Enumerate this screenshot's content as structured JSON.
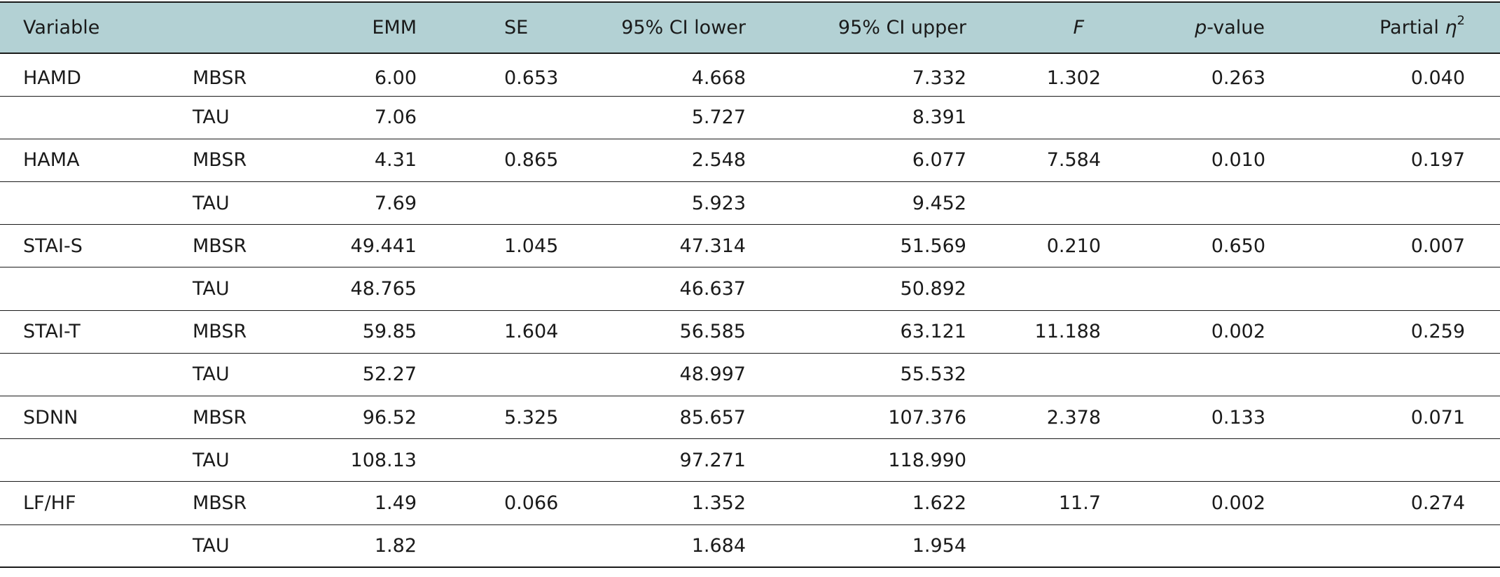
{
  "header": {
    "variable": "Variable",
    "group": "",
    "emm": "EMM",
    "se": "SE",
    "ci_lower": "95% CI lower",
    "ci_upper": "95% CI upper",
    "f_stat": "F",
    "p_italic": "p",
    "p_rest": "-value",
    "eta_prefix": "Partial ",
    "eta_symbol": "η",
    "eta_sup": "2"
  },
  "rows": [
    {
      "variable": "HAMD",
      "group": "MBSR",
      "emm": "6.00",
      "se": "0.653",
      "ci_lower": "4.668",
      "ci_upper": "7.332",
      "f": "1.302",
      "p": "0.263",
      "eta": "0.040"
    },
    {
      "variable": "",
      "group": "TAU",
      "emm": "7.06",
      "se": "",
      "ci_lower": "5.727",
      "ci_upper": "8.391",
      "f": "",
      "p": "",
      "eta": ""
    },
    {
      "variable": "HAMA",
      "group": "MBSR",
      "emm": "4.31",
      "se": "0.865",
      "ci_lower": "2.548",
      "ci_upper": "6.077",
      "f": "7.584",
      "p": "0.010",
      "eta": "0.197"
    },
    {
      "variable": "",
      "group": "TAU",
      "emm": "7.69",
      "se": "",
      "ci_lower": "5.923",
      "ci_upper": "9.452",
      "f": "",
      "p": "",
      "eta": ""
    },
    {
      "variable": "STAI-S",
      "group": "MBSR",
      "emm": "49.441",
      "se": "1.045",
      "ci_lower": "47.314",
      "ci_upper": "51.569",
      "f": "0.210",
      "p": "0.650",
      "eta": "0.007"
    },
    {
      "variable": "",
      "group": "TAU",
      "emm": "48.765",
      "se": "",
      "ci_lower": "46.637",
      "ci_upper": "50.892",
      "f": "",
      "p": "",
      "eta": ""
    },
    {
      "variable": "STAI-T",
      "group": "MBSR",
      "emm": "59.85",
      "se": "1.604",
      "ci_lower": "56.585",
      "ci_upper": "63.121",
      "f": "11.188",
      "p": "0.002",
      "eta": "0.259"
    },
    {
      "variable": "",
      "group": "TAU",
      "emm": "52.27",
      "se": "",
      "ci_lower": "48.997",
      "ci_upper": "55.532",
      "f": "",
      "p": "",
      "eta": ""
    },
    {
      "variable": "SDNN",
      "group": "MBSR",
      "emm": "96.52",
      "se": "5.325",
      "ci_lower": "85.657",
      "ci_upper": "107.376",
      "f": "2.378",
      "p": "0.133",
      "eta": "0.071"
    },
    {
      "variable": "",
      "group": "TAU",
      "emm": "108.13",
      "se": "",
      "ci_lower": "97.271",
      "ci_upper": "118.990",
      "f": "",
      "p": "",
      "eta": ""
    },
    {
      "variable": "LF/HF",
      "group": "MBSR",
      "emm": "1.49",
      "se": "0.066",
      "ci_lower": "1.352",
      "ci_upper": "1.622",
      "f": "11.7",
      "p": "0.002",
      "eta": "0.274"
    },
    {
      "variable": "",
      "group": "TAU",
      "emm": "1.82",
      "se": "",
      "ci_lower": "1.684",
      "ci_upper": "1.954",
      "f": "",
      "p": "",
      "eta": ""
    }
  ]
}
